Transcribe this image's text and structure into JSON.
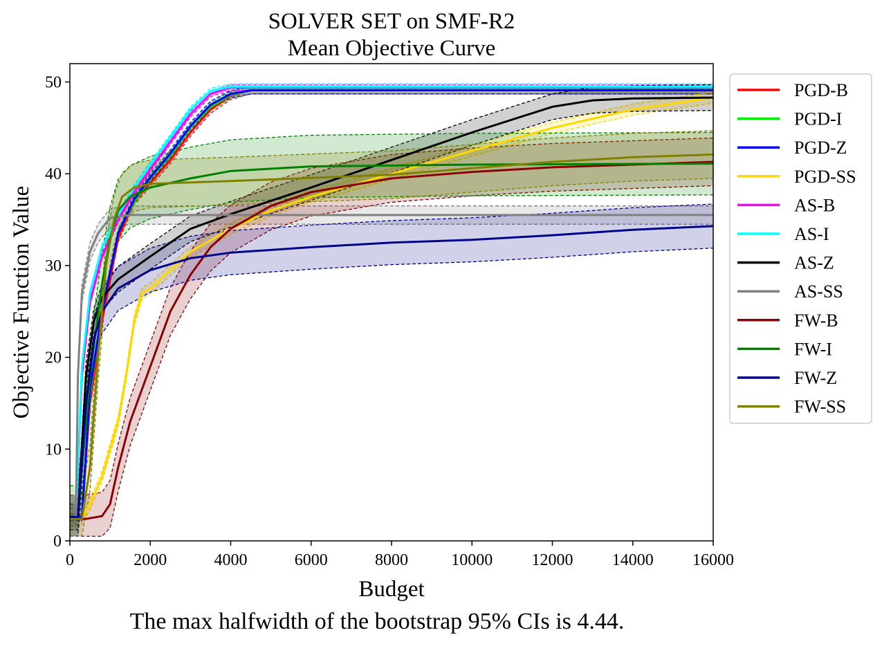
{
  "chart_data": {
    "type": "line",
    "title": [
      "SOLVER SET on SMF-R2",
      "Mean Objective Curve"
    ],
    "xlabel": "Budget",
    "ylabel": "Objective Function Value",
    "xlim": [
      0,
      16000
    ],
    "ylim": [
      0,
      52
    ],
    "xticks": [
      0,
      2000,
      4000,
      6000,
      8000,
      10000,
      12000,
      14000,
      16000
    ],
    "yticks": [
      0,
      10,
      20,
      30,
      40,
      50
    ],
    "grid": false,
    "legend_position": "outside-right",
    "series": [
      {
        "name": "PGD-B",
        "color": "#ff0000",
        "ci": 0.4,
        "points": [
          [
            0,
            2.6
          ],
          [
            300,
            2.6
          ],
          [
            500,
            15
          ],
          [
            800,
            24
          ],
          [
            1200,
            33
          ],
          [
            1600,
            37
          ],
          [
            2000,
            39
          ],
          [
            2500,
            41.5
          ],
          [
            3000,
            44.5
          ],
          [
            3500,
            47
          ],
          [
            4000,
            48.5
          ],
          [
            4500,
            49.1
          ],
          [
            16000,
            49.1
          ]
        ]
      },
      {
        "name": "PGD-I",
        "color": "#00ee00",
        "ci": 0.4,
        "points": [
          [
            0,
            2.6
          ],
          [
            300,
            2.6
          ],
          [
            500,
            16
          ],
          [
            800,
            25
          ],
          [
            1200,
            33.5
          ],
          [
            1600,
            37
          ],
          [
            2000,
            39.5
          ],
          [
            2500,
            42
          ],
          [
            3000,
            45
          ],
          [
            3500,
            47.3
          ],
          [
            4000,
            48.6
          ],
          [
            4500,
            49.1
          ],
          [
            16000,
            49.1
          ]
        ]
      },
      {
        "name": "PGD-Z",
        "color": "#0000ff",
        "ci": 0.4,
        "points": [
          [
            0,
            2.6
          ],
          [
            300,
            2.6
          ],
          [
            500,
            16.5
          ],
          [
            800,
            25
          ],
          [
            1200,
            33.5
          ],
          [
            1600,
            37.2
          ],
          [
            2000,
            39.6
          ],
          [
            2500,
            42.2
          ],
          [
            3000,
            45.2
          ],
          [
            3500,
            47.5
          ],
          [
            4000,
            48.7
          ],
          [
            4500,
            49.1
          ],
          [
            16000,
            49.1
          ]
        ]
      },
      {
        "name": "PGD-SS",
        "color": "#ffd700",
        "ci": 0.6,
        "points": [
          [
            0,
            2.4
          ],
          [
            300,
            2.4
          ],
          [
            500,
            4
          ],
          [
            800,
            7
          ],
          [
            1000,
            10
          ],
          [
            1200,
            13
          ],
          [
            1400,
            18
          ],
          [
            1600,
            24
          ],
          [
            1800,
            27
          ],
          [
            2000,
            27.5
          ],
          [
            2500,
            29.5
          ],
          [
            3000,
            31.5
          ],
          [
            4000,
            34
          ],
          [
            5000,
            36
          ],
          [
            6000,
            37.5
          ],
          [
            8000,
            40
          ],
          [
            10000,
            42.5
          ],
          [
            12000,
            45
          ],
          [
            14000,
            47
          ],
          [
            16000,
            48.3
          ]
        ]
      },
      {
        "name": "AS-B",
        "color": "#ff00ff",
        "ci": 0.3,
        "points": [
          [
            0,
            2.6
          ],
          [
            150,
            2.6
          ],
          [
            300,
            18
          ],
          [
            500,
            26
          ],
          [
            800,
            31
          ],
          [
            1200,
            35
          ],
          [
            1600,
            38
          ],
          [
            2000,
            40.5
          ],
          [
            2500,
            43.5
          ],
          [
            3000,
            46.5
          ],
          [
            3500,
            48.7
          ],
          [
            4000,
            49.4
          ],
          [
            16000,
            49.4
          ]
        ]
      },
      {
        "name": "AS-I",
        "color": "#00ffff",
        "ci": 0.3,
        "points": [
          [
            0,
            2.6
          ],
          [
            150,
            2.6
          ],
          [
            300,
            19
          ],
          [
            500,
            27
          ],
          [
            800,
            32
          ],
          [
            1200,
            35.5
          ],
          [
            1600,
            38.5
          ],
          [
            2000,
            41
          ],
          [
            2500,
            44
          ],
          [
            3000,
            47
          ],
          [
            3500,
            49
          ],
          [
            4000,
            49.5
          ],
          [
            16000,
            49.5
          ]
        ]
      },
      {
        "name": "AS-Z",
        "color": "#000000",
        "ci": 1.4,
        "points": [
          [
            0,
            2.6
          ],
          [
            200,
            2.6
          ],
          [
            400,
            18
          ],
          [
            600,
            24
          ],
          [
            800,
            26.5
          ],
          [
            1200,
            28.5
          ],
          [
            2000,
            31
          ],
          [
            3000,
            34
          ],
          [
            4000,
            35.6
          ],
          [
            6000,
            38.5
          ],
          [
            8000,
            41.5
          ],
          [
            10000,
            44.5
          ],
          [
            12000,
            47.3
          ],
          [
            13000,
            48
          ],
          [
            14000,
            48.2
          ],
          [
            16000,
            48.3
          ]
        ]
      },
      {
        "name": "AS-SS",
        "color": "#808080",
        "ci": 1.0,
        "points": [
          [
            0,
            2.6
          ],
          [
            150,
            2.6
          ],
          [
            200,
            18
          ],
          [
            300,
            27
          ],
          [
            500,
            31.5
          ],
          [
            700,
            33.5
          ],
          [
            1000,
            35.2
          ],
          [
            1500,
            35.5
          ],
          [
            16000,
            35.5
          ]
        ]
      },
      {
        "name": "FW-B",
        "color": "#8b0000",
        "ci": 2.6,
        "points": [
          [
            0,
            2.4
          ],
          [
            400,
            2.4
          ],
          [
            800,
            2.7
          ],
          [
            1000,
            4
          ],
          [
            1200,
            8
          ],
          [
            1500,
            13
          ],
          [
            2000,
            19
          ],
          [
            2500,
            25
          ],
          [
            3000,
            29
          ],
          [
            3500,
            32
          ],
          [
            4000,
            34
          ],
          [
            5000,
            36.5
          ],
          [
            6000,
            38
          ],
          [
            8000,
            39.5
          ],
          [
            10000,
            40.2
          ],
          [
            12000,
            40.7
          ],
          [
            14000,
            41
          ],
          [
            16000,
            41.3
          ]
        ]
      },
      {
        "name": "FW-I",
        "color": "#008000",
        "ci": 3.4,
        "points": [
          [
            0,
            2.6
          ],
          [
            200,
            2.6
          ],
          [
            500,
            18
          ],
          [
            800,
            28
          ],
          [
            1000,
            33
          ],
          [
            1200,
            36
          ],
          [
            1500,
            37.5
          ],
          [
            2000,
            38.5
          ],
          [
            3000,
            39.5
          ],
          [
            4000,
            40.3
          ],
          [
            6000,
            40.8
          ],
          [
            10000,
            41
          ],
          [
            16000,
            41.1
          ]
        ]
      },
      {
        "name": "FW-Z",
        "color": "#00008b",
        "ci": 2.4,
        "points": [
          [
            0,
            2.6
          ],
          [
            200,
            2.6
          ],
          [
            400,
            15
          ],
          [
            600,
            22
          ],
          [
            800,
            25
          ],
          [
            1200,
            27.5
          ],
          [
            2000,
            29.5
          ],
          [
            3000,
            30.8
          ],
          [
            4000,
            31.4
          ],
          [
            6000,
            32
          ],
          [
            8000,
            32.5
          ],
          [
            10000,
            32.8
          ],
          [
            12000,
            33.3
          ],
          [
            14000,
            33.9
          ],
          [
            16000,
            34.3
          ]
        ]
      },
      {
        "name": "FW-SS",
        "color": "#808000",
        "ci": 2.6,
        "points": [
          [
            0,
            2.4
          ],
          [
            300,
            2.4
          ],
          [
            500,
            8
          ],
          [
            700,
            20
          ],
          [
            900,
            30
          ],
          [
            1100,
            35
          ],
          [
            1300,
            37.5
          ],
          [
            1600,
            38.5
          ],
          [
            2000,
            38.9
          ],
          [
            4000,
            39.2
          ],
          [
            8000,
            39.9
          ],
          [
            10000,
            40.6
          ],
          [
            12000,
            41.3
          ],
          [
            14000,
            41.8
          ],
          [
            16000,
            42.1
          ]
        ]
      }
    ],
    "footnote": "The max halfwidth of the bootstrap 95% CIs is 4.44."
  }
}
